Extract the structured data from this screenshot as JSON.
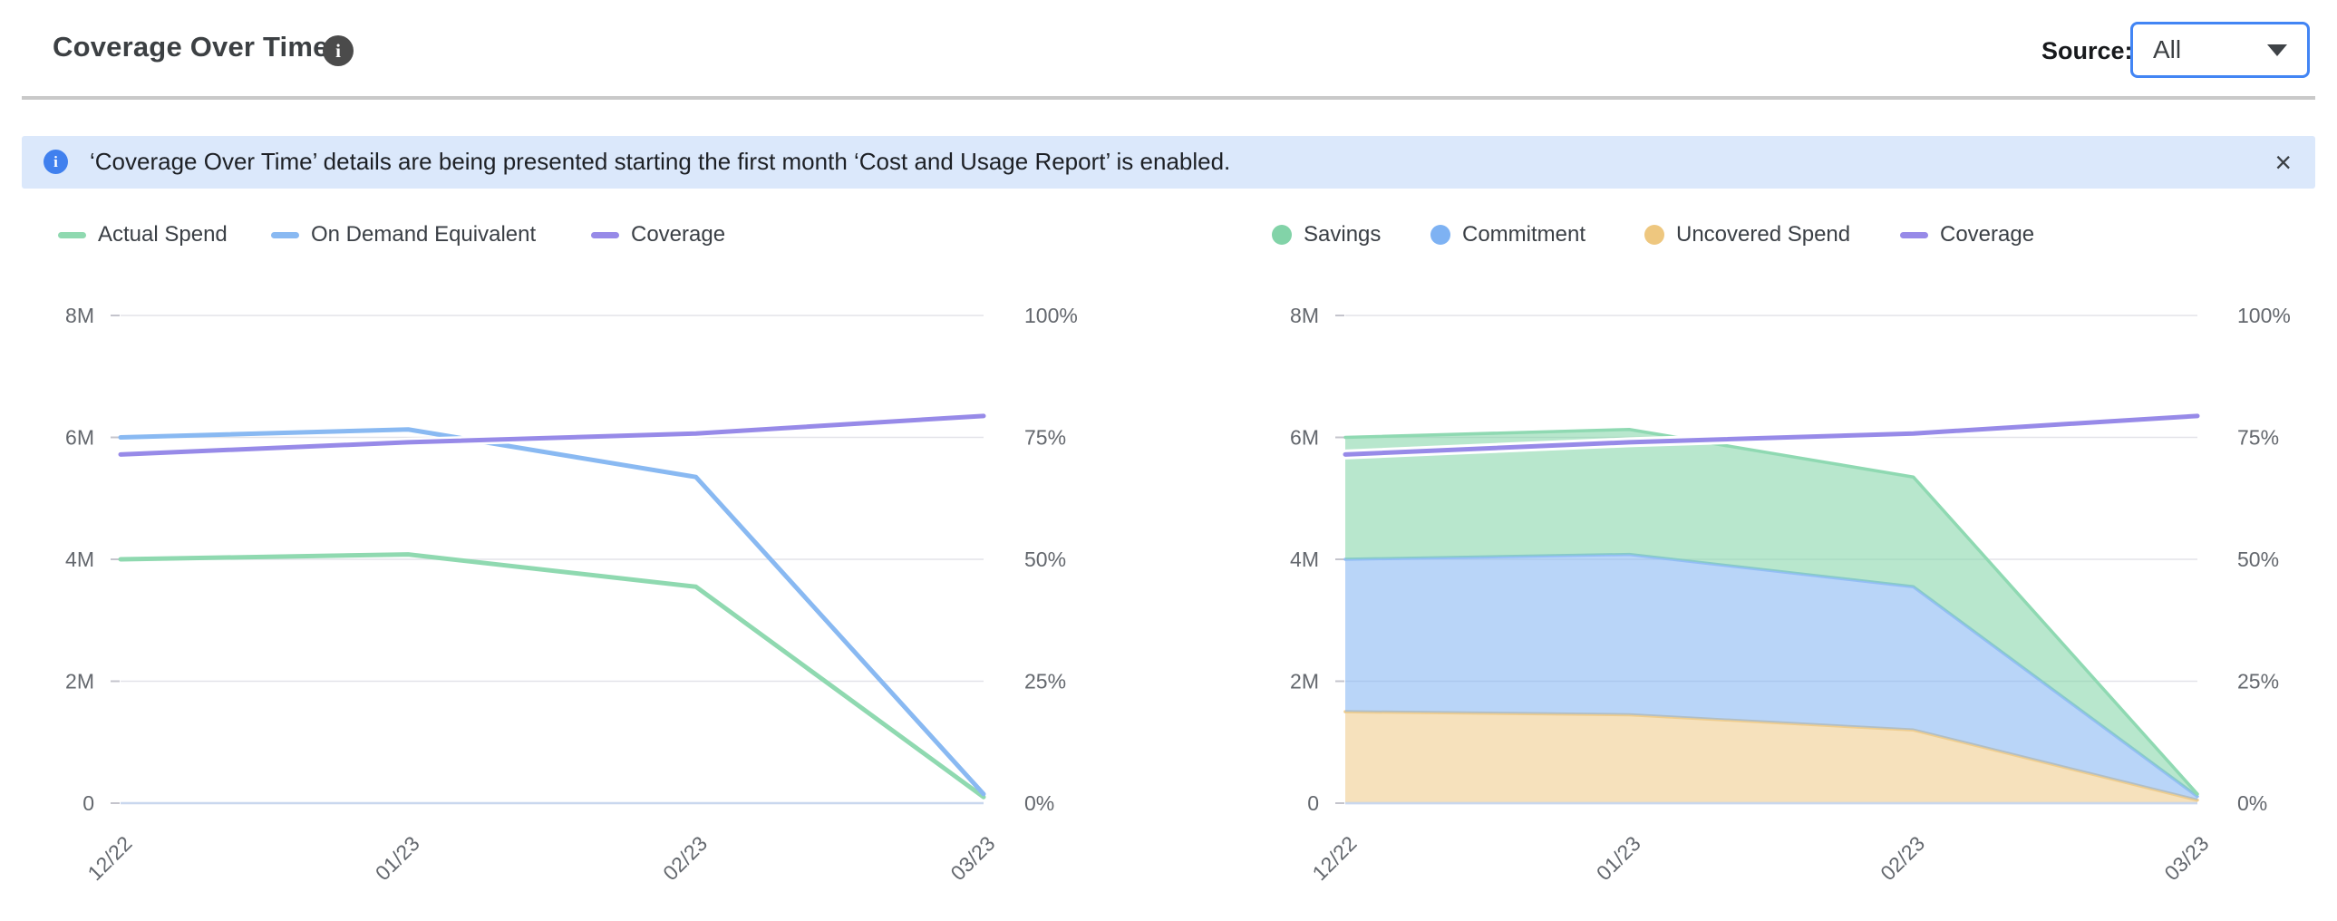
{
  "header": {
    "title": "Coverage Over Time",
    "info_icon": "i",
    "source_label": "Source:",
    "source_value": "All"
  },
  "banner": {
    "icon": "i",
    "text": "‘Coverage Over Time’ details are being presented starting the first month ‘Cost and Usage Report’ is enabled.",
    "close_icon": "×"
  },
  "colors": {
    "green_line": "#8FD9B0",
    "blue_line": "#89B9F2",
    "purple_line": "#978AE8",
    "green_fill": "#7ED3A4",
    "blue_fill": "#7FB3F2",
    "orange_fill": "#EFC985",
    "green_dot": "#82D3A8",
    "blue_dot": "#7EB2F3",
    "orange_dot": "#EEC77F",
    "grid": "#E3E3E9",
    "zero_axis": "#C9D7EE",
    "axis_text": "#63676D",
    "accent_blue": "#4285F4",
    "banner_bg": "#DBE8FB"
  },
  "chart_data": [
    {
      "type": "line",
      "title": "Coverage Over Time (lines)",
      "x": [
        "12/22",
        "01/23",
        "02/23",
        "03/23"
      ],
      "y_left": {
        "labels": [
          "8M",
          "6M",
          "4M",
          "2M",
          "0"
        ],
        "max_millions": 8,
        "min": 0
      },
      "y_right": {
        "labels": [
          "100%",
          "75%",
          "50%",
          "25%",
          "0%"
        ],
        "max_pct": 100,
        "min": 0
      },
      "grid": "on",
      "legend_position": "top-left",
      "legend": [
        {
          "label": "Actual Spend",
          "color": "#8FD9B0",
          "swatch": "line"
        },
        {
          "label": "On Demand Equivalent",
          "color": "#89B9F2",
          "swatch": "line"
        },
        {
          "label": "Coverage",
          "color": "#978AE8",
          "swatch": "line"
        }
      ],
      "series": [
        {
          "name": "Actual Spend",
          "axis": "left",
          "unit": "M",
          "color": "#8FD9B0",
          "values": [
            4.0,
            4.08,
            3.55,
            0.1
          ]
        },
        {
          "name": "On Demand Equivalent",
          "axis": "left",
          "unit": "M",
          "color": "#89B9F2",
          "values": [
            6.0,
            6.13,
            5.35,
            0.15
          ]
        },
        {
          "name": "Coverage",
          "axis": "right",
          "unit": "%",
          "color": "#978AE8",
          "halo": true,
          "values": [
            71.5,
            74.0,
            75.8,
            79.4
          ]
        }
      ]
    },
    {
      "type": "stacked-area",
      "title": "Coverage Over Time (stacked)",
      "x": [
        "12/22",
        "01/23",
        "02/23",
        "03/23"
      ],
      "y_left": {
        "labels": [
          "8M",
          "6M",
          "4M",
          "2M",
          "0"
        ],
        "max_millions": 8,
        "min": 0
      },
      "y_right": {
        "labels": [
          "100%",
          "75%",
          "50%",
          "25%",
          "0%"
        ],
        "max_pct": 100,
        "min": 0
      },
      "grid": "on",
      "legend_position": "top-left",
      "legend": [
        {
          "label": "Savings",
          "color": "#82D3A8",
          "swatch": "dot"
        },
        {
          "label": "Commitment",
          "color": "#7EB2F3",
          "swatch": "dot"
        },
        {
          "label": "Uncovered Spend",
          "color": "#EEC77F",
          "swatch": "dot"
        },
        {
          "label": "Coverage",
          "color": "#978AE8",
          "swatch": "line"
        }
      ],
      "series": [
        {
          "name": "Uncovered Spend",
          "unit": "M",
          "fill": "#EFC985",
          "edge": "#EECD8F",
          "values": [
            1.5,
            1.45,
            1.2,
            0.05
          ]
        },
        {
          "name": "Commitment",
          "unit": "M",
          "fill": "#7FB3F2",
          "edge": "#93BEF5",
          "values": [
            2.5,
            2.63,
            2.35,
            0.06
          ]
        },
        {
          "name": "Savings",
          "unit": "M",
          "fill": "#7ED3A4",
          "edge": "#8FD9B2",
          "values": [
            2.0,
            2.05,
            1.8,
            0.04
          ]
        }
      ],
      "line_series": {
        "name": "Coverage",
        "axis": "right",
        "unit": "%",
        "color": "#978AE8",
        "halo": true,
        "values": [
          71.5,
          74.0,
          75.8,
          79.4
        ]
      }
    }
  ]
}
